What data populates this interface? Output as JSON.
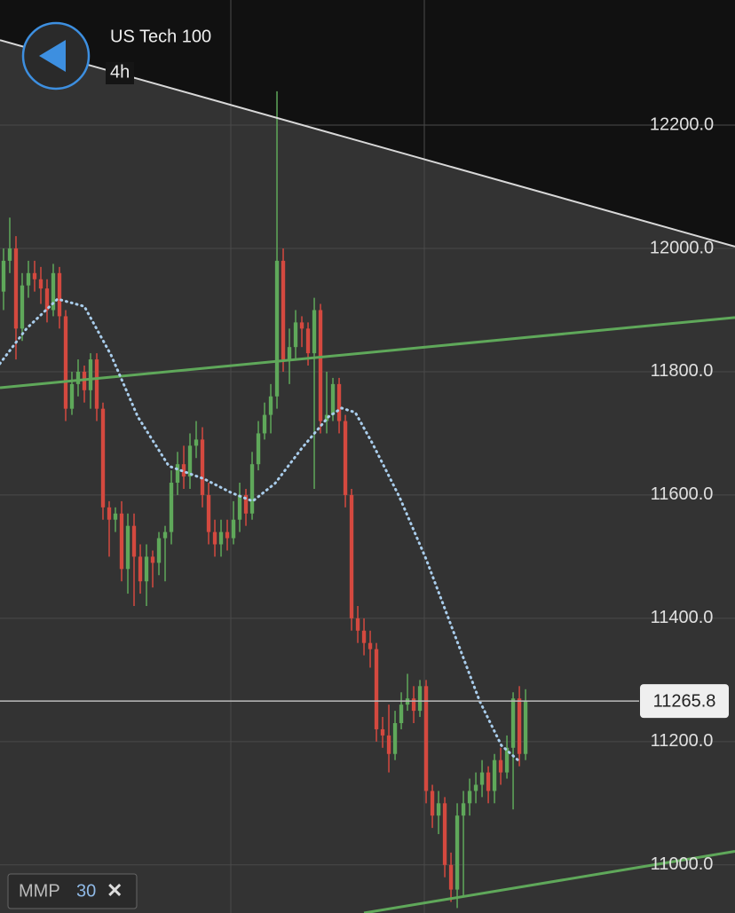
{
  "header": {
    "title": "US Tech 100",
    "timeframe": "4h"
  },
  "indicator": {
    "name": "MMP",
    "period": 30,
    "close_icon": "✕"
  },
  "chart_data": {
    "type": "candlestick",
    "open": [
      11930,
      11980,
      12000,
      11870,
      11940,
      11960,
      11950,
      11935,
      11900,
      11960,
      11890,
      11740,
      11780,
      11800,
      11770,
      11820,
      11740,
      11580,
      11560,
      11570,
      11480,
      11550,
      11500,
      11460,
      11500,
      11490,
      11530,
      11540,
      11620,
      11650,
      11630,
      11680,
      11690,
      11600,
      11540,
      11520,
      11540,
      11530,
      11560,
      11600,
      11570,
      11650,
      11700,
      11730,
      11760,
      11980,
      11820,
      11840,
      11880,
      11870,
      11830,
      11900,
      11720,
      11730,
      11780,
      11720,
      11600,
      11400,
      11380,
      11360,
      11350,
      11220,
      11210,
      11180,
      11230,
      11260,
      11270,
      11250,
      11290,
      11120,
      11080,
      11100,
      11000,
      10960,
      11080,
      11100,
      11120,
      11130,
      11150,
      11120,
      11170,
      11150,
      11190,
      11270,
      11180
    ],
    "high": [
      12000,
      12050,
      12020,
      11960,
      11980,
      11980,
      11970,
      11950,
      11975,
      11970,
      11900,
      11800,
      11820,
      11810,
      11830,
      11830,
      11750,
      11590,
      11580,
      11590,
      11570,
      11570,
      11520,
      11520,
      11510,
      11540,
      11550,
      11640,
      11670,
      11680,
      11700,
      11720,
      11710,
      11620,
      11560,
      11560,
      11560,
      11590,
      11620,
      11610,
      11670,
      11720,
      11750,
      11780,
      12255,
      12000,
      11870,
      11900,
      11890,
      11880,
      11920,
      11910,
      11800,
      11790,
      11790,
      11730,
      11610,
      11420,
      11400,
      11380,
      11360,
      11240,
      11260,
      11250,
      11280,
      11310,
      11290,
      11300,
      11300,
      11130,
      11120,
      11110,
      11020,
      11100,
      11120,
      11140,
      11150,
      11170,
      11160,
      11180,
      11190,
      11210,
      11280,
      11290,
      11285
    ],
    "low": [
      11900,
      11960,
      11820,
      11850,
      11920,
      11930,
      11910,
      11880,
      11890,
      11870,
      11720,
      11730,
      11760,
      11750,
      11740,
      11720,
      11560,
      11500,
      11540,
      11460,
      11440,
      11420,
      11440,
      11420,
      11450,
      11470,
      11460,
      11520,
      11600,
      11610,
      11610,
      11660,
      11580,
      11520,
      11500,
      11500,
      11510,
      11520,
      11540,
      11550,
      11560,
      11640,
      11690,
      11700,
      11740,
      11800,
      11780,
      11820,
      11840,
      11810,
      11610,
      11700,
      11700,
      11720,
      11700,
      11580,
      11380,
      11360,
      11340,
      11320,
      11200,
      11190,
      11150,
      11170,
      11220,
      11250,
      11230,
      11240,
      11100,
      11060,
      11050,
      10980,
      10940,
      10930,
      10950,
      11080,
      11100,
      11110,
      11100,
      11100,
      11130,
      11140,
      11090,
      11160,
      11170
    ],
    "close": [
      11980,
      12000,
      11870,
      11940,
      11960,
      11950,
      11935,
      11900,
      11960,
      11890,
      11740,
      11780,
      11800,
      11770,
      11820,
      11740,
      11580,
      11560,
      11570,
      11480,
      11550,
      11500,
      11460,
      11500,
      11490,
      11530,
      11540,
      11620,
      11650,
      11630,
      11680,
      11690,
      11600,
      11540,
      11520,
      11540,
      11530,
      11560,
      11600,
      11570,
      11650,
      11700,
      11730,
      11760,
      11980,
      11820,
      11840,
      11880,
      11870,
      11830,
      11900,
      11720,
      11730,
      11780,
      11720,
      11600,
      11400,
      11380,
      11360,
      11350,
      11220,
      11210,
      11180,
      11230,
      11260,
      11270,
      11250,
      11290,
      11120,
      11080,
      11100,
      11000,
      10960,
      11080,
      11100,
      11120,
      11130,
      11150,
      11120,
      11170,
      11150,
      11190,
      11270,
      11180,
      11265.8
    ],
    "up_color": "#5fa85a",
    "down_color": "#d4493f",
    "xlim": [
      -0.57,
      117.7
    ],
    "ylim": [
      10922,
      12403
    ],
    "yticks": [
      {
        "value": 11000,
        "label": "11000.0"
      },
      {
        "value": 11200,
        "label": "11200.0"
      },
      {
        "value": 11400,
        "label": "11400.0"
      },
      {
        "value": 11600,
        "label": "11600.0"
      },
      {
        "value": 11800,
        "label": "11800.0"
      },
      {
        "value": 12000,
        "label": "12000.0"
      },
      {
        "value": 12200,
        "label": "12200.0"
      }
    ],
    "grid": true,
    "moving_average": {
      "color": "#a9cdec",
      "x": [
        -0.6,
        3.7,
        8.7,
        13,
        17.3,
        21.6,
        26.6,
        32.3,
        36.6,
        40.1,
        43.7,
        48,
        52.3,
        54.4,
        56.6,
        59.4,
        63.7,
        68,
        72.3,
        76.6,
        80.1,
        83
      ],
      "values": [
        11813,
        11870,
        11918,
        11906,
        11827,
        11727,
        11647,
        11626,
        11604,
        11590,
        11619,
        11676,
        11727,
        11741,
        11734,
        11683,
        11597,
        11496,
        11381,
        11266,
        11194,
        11168
      ]
    },
    "trendlines": [
      {
        "x": [
          -0.57,
          117.7
        ],
        "y": [
          12338,
          12003
        ],
        "color": "#d8d8d8"
      },
      {
        "x": [
          -0.57,
          117.7
        ],
        "y": [
          11774,
          11888
        ],
        "color": "#5fa85a"
      },
      {
        "x": [
          58,
          117.7
        ],
        "y": [
          10922,
          11022
        ],
        "color": "#5fa85a"
      }
    ],
    "last_price": 11265.8
  }
}
